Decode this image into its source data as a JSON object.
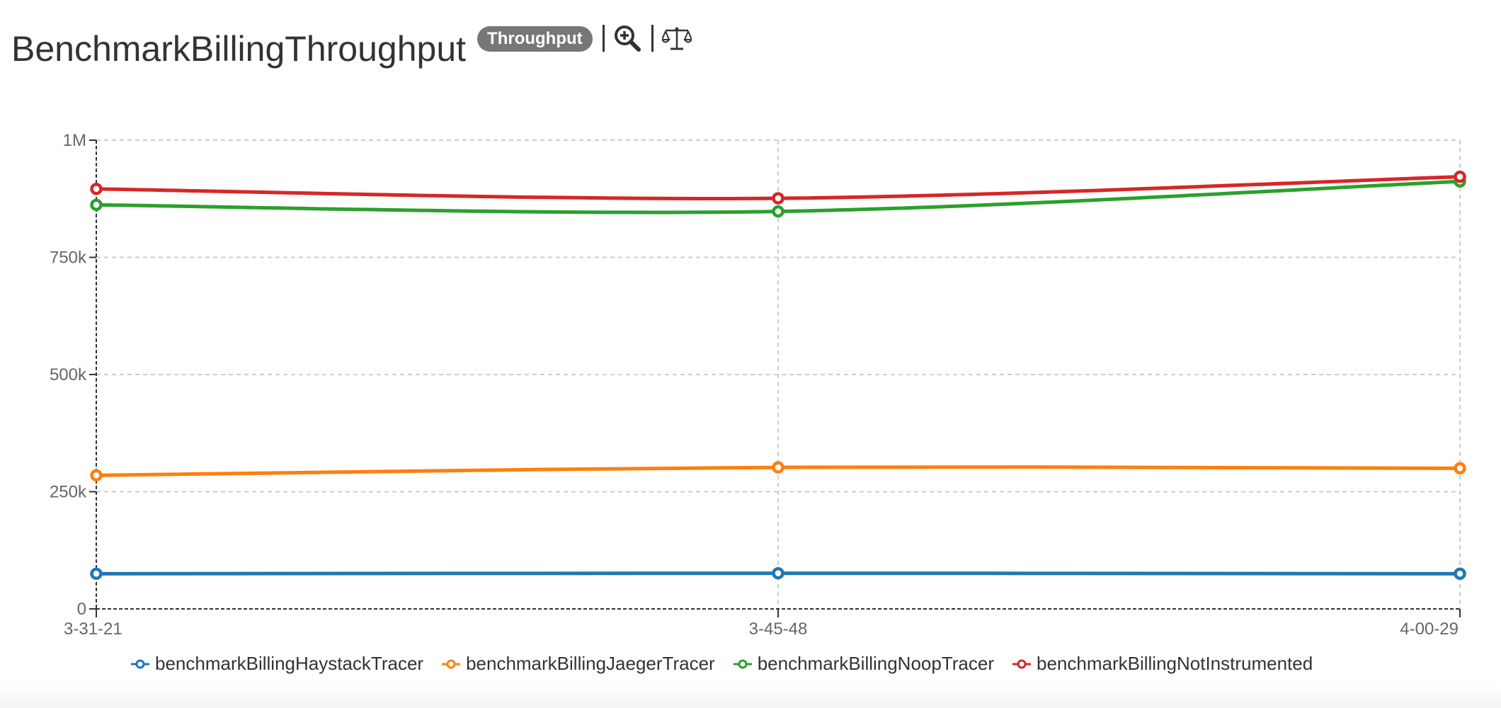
{
  "header": {
    "title": "BenchmarkBillingThroughput",
    "badge": "Throughput",
    "icons": [
      "zoom-in-icon",
      "scale-icon"
    ]
  },
  "chart_data": {
    "type": "line",
    "title": "BenchmarkBillingThroughput",
    "xlabel": "",
    "ylabel": "",
    "categories": [
      "3-31-21",
      "3-45-48",
      "4-00-29"
    ],
    "ylim": [
      0,
      1000000
    ],
    "yticks": [
      0,
      250000,
      500000,
      750000,
      1000000
    ],
    "ytick_labels": [
      "0",
      "250k",
      "500k",
      "750k",
      "1M"
    ],
    "grid": true,
    "legend_position": "bottom",
    "series": [
      {
        "name": "benchmarkBillingHaystackTracer",
        "color": "#1f77b4",
        "values": [
          75000,
          76000,
          75000
        ]
      },
      {
        "name": "benchmarkBillingJaegerTracer",
        "color": "#ff7f0e",
        "values": [
          285000,
          302000,
          300000
        ]
      },
      {
        "name": "benchmarkBillingNoopTracer",
        "color": "#2ca02c",
        "values": [
          862000,
          848000,
          912000
        ]
      },
      {
        "name": "benchmarkBillingNotInstrumented",
        "color": "#d62728",
        "values": [
          896000,
          876000,
          922000
        ]
      }
    ]
  }
}
